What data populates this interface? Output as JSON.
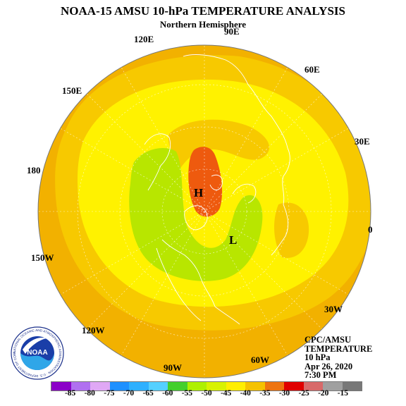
{
  "header": {
    "title": "NOAA-15 AMSU 10-hPa TEMPERATURE ANALYSIS",
    "subtitle": "Northern Hemisphere"
  },
  "longitude_labels": {
    "lon_90E": "90E",
    "lon_60E": "60E",
    "lon_30E": "30E",
    "lon_0": "0",
    "lon_30W": "30W",
    "lon_60W": "60W",
    "lon_90W": "90W",
    "lon_120W": "120W",
    "lon_150W": "150W",
    "lon_180": "180",
    "lon_150E": "150E",
    "lon_120E": "120E"
  },
  "map": {
    "high_marker": "H",
    "low_marker": "L",
    "colors": {
      "warm_orange": "#f2b100",
      "mid_orange": "#f7c900",
      "yellow": "#fff200",
      "light_green": "#b8e600",
      "red_orange": "#ee5a0e",
      "coastline": "#ffffff"
    }
  },
  "info": {
    "line1": "CPC/AMSU",
    "line2": "TEMPERATURE",
    "line3": "10 hPa",
    "line4": "Apr 26, 2020",
    "line5": "7:30 PM"
  },
  "legend": {
    "colors": [
      "#8b00c8",
      "#b070f0",
      "#e0a8f5",
      "#1e90ff",
      "#2fb0ff",
      "#55d0ff",
      "#43cf2d",
      "#aef000",
      "#d8f200",
      "#ffee00",
      "#f5c200",
      "#ee7410",
      "#e00000",
      "#d86a6a",
      "#a0a0a0",
      "#787878"
    ],
    "labels": [
      "-85",
      "-80",
      "-75",
      "-70",
      "-65",
      "-60",
      "-55",
      "-50",
      "-45",
      "-40",
      "-35",
      "-30",
      "-25",
      "-20",
      "-15"
    ]
  },
  "logo": {
    "text": "NOAA",
    "ring_text": "NATIONAL OCEANIC AND ATMOSPHERIC ADMINISTRATION · U.S. DEPARTMENT OF COMMERCE"
  }
}
